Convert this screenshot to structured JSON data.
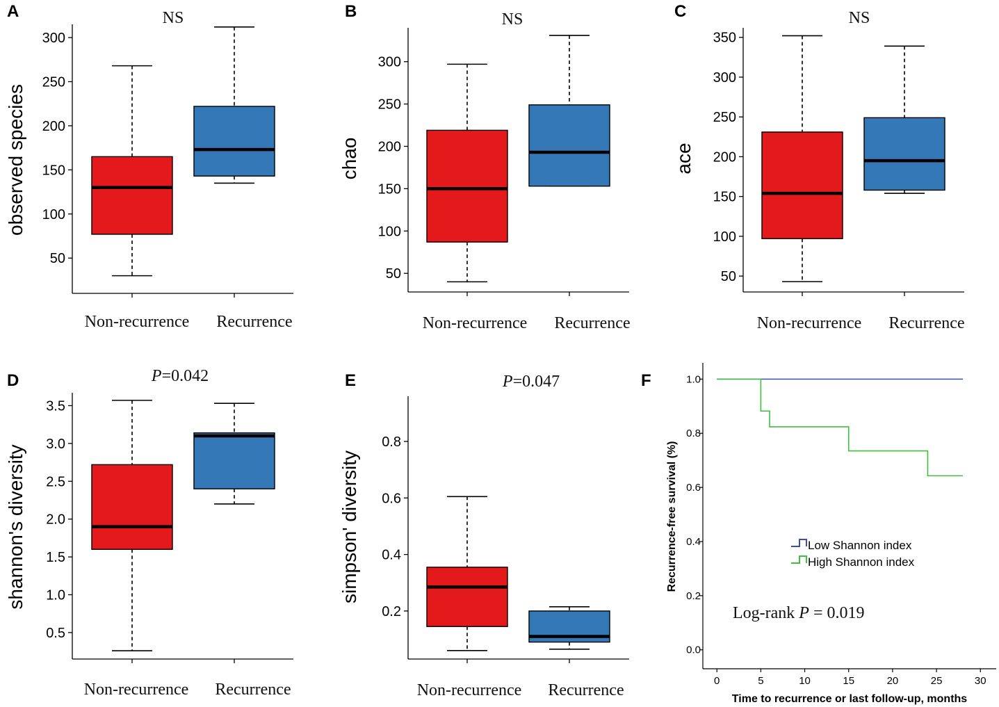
{
  "colors": {
    "non_recurrence": "#e3191c",
    "recurrence": "#3478b7",
    "low_shannon": "#3a4fb0",
    "high_shannon": "#3fbf3f"
  },
  "chart_data": [
    {
      "panel": "A",
      "type": "box",
      "title": "NS",
      "ylabel": "observed species",
      "categories": [
        "Non-recurrence",
        "Recurrence"
      ],
      "yticks": [
        50,
        100,
        150,
        200,
        250,
        300
      ],
      "ylim": [
        10,
        315
      ],
      "boxes": [
        {
          "min": 30,
          "q1": 77,
          "median": 130,
          "q3": 165,
          "max": 268
        },
        {
          "min": 135,
          "q1": 143,
          "median": 173,
          "q3": 222,
          "max": 312
        }
      ]
    },
    {
      "panel": "B",
      "type": "box",
      "title": "NS",
      "ylabel": "chao",
      "categories": [
        "Non-recurrence",
        "Recurrence"
      ],
      "yticks": [
        50,
        100,
        150,
        200,
        250,
        300
      ],
      "ylim": [
        28,
        340
      ],
      "boxes": [
        {
          "min": 40,
          "q1": 87,
          "median": 150,
          "q3": 219,
          "max": 297
        },
        {
          "min": 153,
          "q1": 153,
          "median": 193,
          "q3": 249,
          "max": 331
        }
      ]
    },
    {
      "panel": "C",
      "type": "box",
      "title": "NS",
      "ylabel": "ace",
      "categories": [
        "Non-recurrence",
        "Recurrence"
      ],
      "yticks": [
        50,
        100,
        150,
        200,
        250,
        300,
        350
      ],
      "ylim": [
        30,
        362
      ],
      "boxes": [
        {
          "min": 43,
          "q1": 97,
          "median": 154,
          "q3": 231,
          "max": 352
        },
        {
          "min": 154,
          "q1": 158,
          "median": 195,
          "q3": 249,
          "max": 339
        }
      ]
    },
    {
      "panel": "D",
      "type": "box",
      "title": "P=0.042",
      "title_italic": "P",
      "title_rest": "=0.042",
      "ylabel": "shannon's diversity",
      "categories": [
        "Non-recurrence",
        "Recurrence"
      ],
      "yticks": [
        "0.5",
        "1.0",
        "1.5",
        "2.0",
        "2.5",
        "3.0",
        "3.5"
      ],
      "ylim": [
        0.15,
        3.67
      ],
      "boxes": [
        {
          "min": 0.26,
          "q1": 1.6,
          "median": 1.9,
          "q3": 2.72,
          "max": 3.57
        },
        {
          "min": 2.2,
          "q1": 2.4,
          "median": 3.1,
          "q3": 3.14,
          "max": 3.53
        }
      ]
    },
    {
      "panel": "E",
      "type": "box",
      "title": "P=0.047",
      "title_italic": "P",
      "title_rest": "=0.047",
      "ylabel": "simpson' diversity",
      "categories": [
        "Non-recurrence",
        "Recurrence"
      ],
      "yticks": [
        "0.2",
        "0.4",
        "0.6",
        "0.8"
      ],
      "ylim": [
        0.03,
        0.96
      ],
      "boxes": [
        {
          "min": 0.06,
          "q1": 0.145,
          "median": 0.285,
          "q3": 0.355,
          "max": 0.605
        },
        {
          "min": 0.065,
          "q1": 0.09,
          "median": 0.11,
          "q3": 0.2,
          "max": 0.215
        }
      ]
    },
    {
      "panel": "F",
      "type": "line",
      "xlabel": "Time to recurrence or last follow-up, months",
      "ylabel": "Recurrence-free survival (%)",
      "xticks": [
        "0",
        "5",
        "10",
        "15",
        "20",
        "25",
        "30"
      ],
      "yticks": [
        "0.0",
        "0.2",
        "0.4",
        "0.6",
        "0.8",
        "1.0"
      ],
      "xlim": [
        -1.6,
        31.8
      ],
      "ylim": [
        -0.07,
        1.06
      ],
      "series": [
        {
          "name": "Low Shannon index",
          "steps": [
            [
              0,
              1.0
            ],
            [
              28,
              1.0
            ]
          ]
        },
        {
          "name": "High Shannon index",
          "steps": [
            [
              0,
              1.0
            ],
            [
              5,
              0.882
            ],
            [
              6,
              0.824
            ],
            [
              15,
              0.735
            ],
            [
              24,
              0.643
            ],
            [
              28,
              0.643
            ]
          ]
        }
      ],
      "annotation": "Log-rank P = 0.019",
      "annotation_prefix": "Log-rank ",
      "annotation_italic": "P",
      "annotation_suffix": " = 0.019"
    }
  ]
}
